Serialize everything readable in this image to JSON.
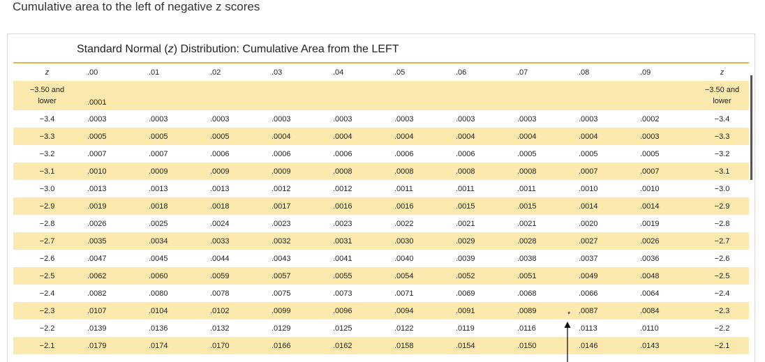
{
  "heading": "Cumulative area to the left of negative z scores",
  "table": {
    "title_prefix": "Standard Normal (",
    "title_var": "z",
    "title_suffix": ") Distribution: Cumulative Area from the LEFT",
    "z_header": "z",
    "columns": [
      ".00",
      ".01",
      ".02",
      ".03",
      ".04",
      ".05",
      ".06",
      ".07",
      ".08",
      ".09"
    ],
    "rows": [
      {
        "z": "−3.50 and lower",
        "values": [
          ".0001",
          "",
          "",
          "",
          "",
          "",
          "",
          "",
          "",
          ""
        ]
      },
      {
        "z": "−3.4",
        "values": [
          ".0003",
          ".0003",
          ".0003",
          ".0003",
          ".0003",
          ".0003",
          ".0003",
          ".0003",
          ".0003",
          ".0002"
        ]
      },
      {
        "z": "−3.3",
        "values": [
          ".0005",
          ".0005",
          ".0005",
          ".0004",
          ".0004",
          ".0004",
          ".0004",
          ".0004",
          ".0004",
          ".0003"
        ]
      },
      {
        "z": "−3.2",
        "values": [
          ".0007",
          ".0007",
          ".0006",
          ".0006",
          ".0006",
          ".0006",
          ".0006",
          ".0005",
          ".0005",
          ".0005"
        ]
      },
      {
        "z": "−3.1",
        "values": [
          ".0010",
          ".0009",
          ".0009",
          ".0009",
          ".0008",
          ".0008",
          ".0008",
          ".0008",
          ".0007",
          ".0007"
        ]
      },
      {
        "z": "−3.0",
        "values": [
          ".0013",
          ".0013",
          ".0013",
          ".0012",
          ".0012",
          ".0011",
          ".0011",
          ".0011",
          ".0010",
          ".0010"
        ]
      },
      {
        "z": "−2.9",
        "values": [
          ".0019",
          ".0018",
          ".0018",
          ".0017",
          ".0016",
          ".0016",
          ".0015",
          ".0015",
          ".0014",
          ".0014"
        ]
      },
      {
        "z": "−2.8",
        "values": [
          ".0026",
          ".0025",
          ".0024",
          ".0023",
          ".0023",
          ".0022",
          ".0021",
          ".0021",
          ".0020",
          ".0019"
        ]
      },
      {
        "z": "−2.7",
        "values": [
          ".0035",
          ".0034",
          ".0033",
          ".0032",
          ".0031",
          ".0030",
          ".0029",
          ".0028",
          ".0027",
          ".0026"
        ]
      },
      {
        "z": "−2.6",
        "values": [
          ".0047",
          ".0045",
          ".0044",
          ".0043",
          ".0041",
          ".0040",
          ".0039",
          ".0038",
          ".0037",
          ".0036"
        ]
      },
      {
        "z": "−2.5",
        "values": [
          ".0062",
          ".0060",
          ".0059",
          ".0057",
          ".0055",
          ".0054",
          ".0052",
          ".0051",
          ".0049",
          ".0048"
        ]
      },
      {
        "z": "−2.4",
        "values": [
          ".0082",
          ".0080",
          ".0078",
          ".0075",
          ".0073",
          ".0071",
          ".0069",
          ".0068",
          ".0066",
          ".0064"
        ]
      },
      {
        "z": "−2.3",
        "values": [
          ".0107",
          ".0104",
          ".0102",
          ".0099",
          ".0096",
          ".0094",
          ".0091",
          ".0089",
          ".0087",
          ".0084"
        ]
      },
      {
        "z": "−2.2",
        "values": [
          ".0139",
          ".0136",
          ".0132",
          ".0129",
          ".0125",
          ".0122",
          ".0119",
          ".0116",
          ".0113",
          ".0110"
        ]
      },
      {
        "z": "−2.1",
        "values": [
          ".0179",
          ".0174",
          ".0170",
          ".0166",
          ".0162",
          ".0158",
          ".0154",
          ".0150",
          ".0146",
          ".0143"
        ]
      }
    ],
    "star_symbol": "*"
  },
  "colors": {
    "highlight_row": "#fbe9ad",
    "rule": "#e3b94b"
  }
}
